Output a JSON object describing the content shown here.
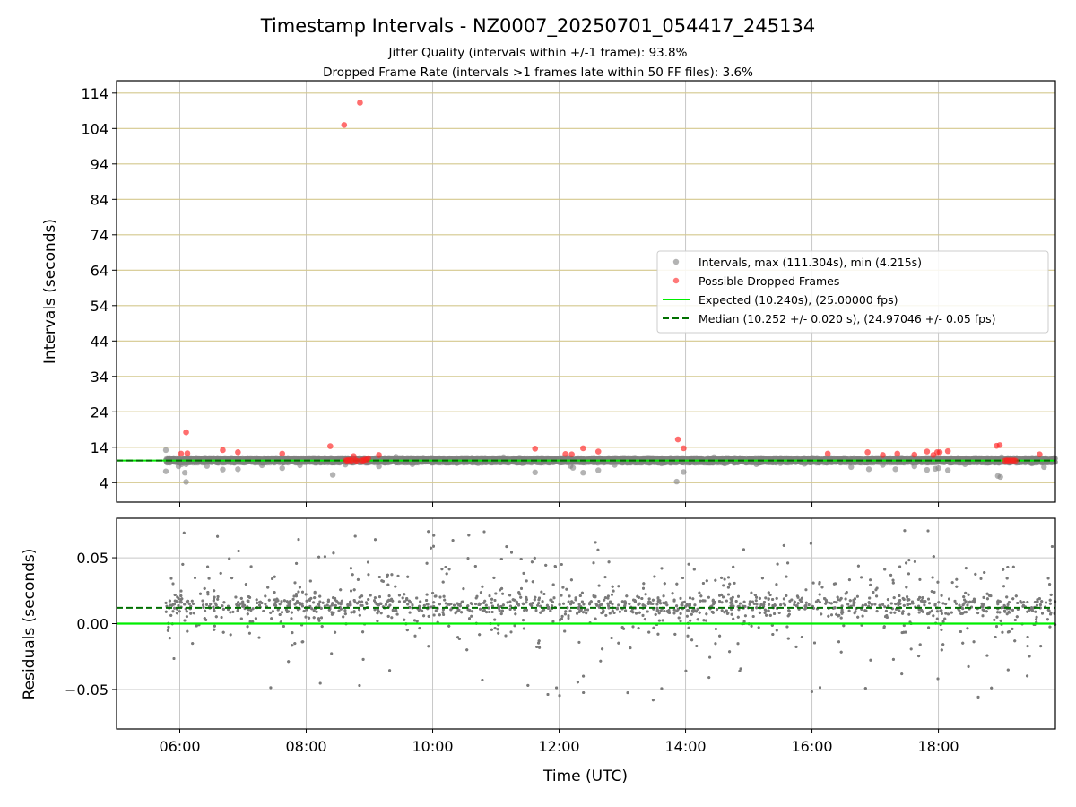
{
  "chart_data": [
    {
      "type": "scatter",
      "title": "Timestamp Intervals - NZ0007_20250701_054417_245134",
      "subtitle_lines": [
        "Jitter Quality (intervals within +/-1 frame): 93.8%",
        "Dropped Frame Rate (intervals >1 frames late within 50 FF files): 3.6%"
      ],
      "xlabel": "",
      "ylabel": "Intervals (seconds)",
      "x_units": "hours UTC",
      "xlim": [
        5.0,
        19.85
      ],
      "ylim": [
        -1.5,
        117.5
      ],
      "yticks": [
        4,
        14,
        24,
        34,
        44,
        54,
        64,
        74,
        84,
        94,
        104,
        114
      ],
      "ytick_labels": [
        "4",
        "14",
        "24",
        "34",
        "44",
        "54",
        "64",
        "74",
        "84",
        "94",
        "104",
        "114"
      ],
      "grid": {
        "horizontal_color": "#d4c88e",
        "vertical_color": "#c8c8c8"
      },
      "legend": {
        "position": "center-right",
        "entries": [
          "Intervals, max (111.304s), min (4.215s)",
          "Possible Dropped Frames",
          "Expected (10.240s), (25.00000 fps)",
          "Median (10.252 +/- 0.020 s), (24.97046 +/- 0.05 fps)"
        ]
      },
      "colors": {
        "intervals": "#808080",
        "dropped": "#ff2020",
        "expected": "#00ee00",
        "median": "#007000"
      },
      "series": [
        {
          "name": "Intervals, max (111.304s), min (4.215s)",
          "x": [
            5.78,
            5.78,
            5.98,
            6.03,
            6.08,
            6.1,
            6.1,
            6.43,
            6.68,
            6.92,
            7.3,
            7.45,
            7.62,
            7.9,
            8.05,
            8.25,
            8.42,
            8.62,
            8.95,
            9.15,
            9.42,
            9.68,
            10.08,
            10.38,
            10.72,
            11.12,
            11.42,
            11.62,
            11.84,
            12.18,
            12.22,
            12.38,
            12.62,
            12.88,
            13.22,
            13.62,
            13.86,
            13.97,
            14.45,
            14.62,
            15.12,
            15.5,
            15.88,
            16.28,
            16.62,
            16.9,
            17.12,
            17.32,
            17.62,
            17.82,
            17.95,
            18.0,
            18.15,
            18.42,
            18.68,
            18.94,
            18.98,
            19.0,
            19.48,
            19.67
          ],
          "y": [
            13.2,
            7.2,
            8.6,
            9.2,
            6.8,
            4.2,
            9.2,
            8.7,
            7.7,
            7.8,
            8.9,
            10.9,
            8.1,
            8.9,
            10.9,
            10.8,
            6.2,
            9.1,
            9.6,
            8.6,
            11.3,
            9.2,
            10.9,
            9.5,
            9.5,
            11.2,
            9.5,
            6.9,
            10.3,
            8.7,
            8.2,
            6.8,
            7.5,
            9.0,
            9.7,
            9.4,
            4.3,
            7.0,
            11.2,
            9.4,
            9.2,
            9.5,
            9.3,
            10.4,
            8.4,
            7.8,
            9.0,
            7.8,
            8.6,
            7.6,
            7.9,
            8.1,
            7.5,
            9.2,
            10.3,
            5.9,
            5.6,
            11.2,
            9.4,
            8.4
          ]
        },
        {
          "name": "Possible Dropped Frames",
          "x": [
            6.02,
            6.1,
            6.12,
            6.68,
            6.92,
            7.62,
            8.38,
            8.6,
            8.63,
            8.65,
            8.67,
            8.7,
            8.72,
            8.75,
            8.78,
            8.8,
            8.85,
            8.87,
            8.9,
            8.92,
            8.95,
            8.98,
            9.15,
            11.62,
            12.1,
            12.2,
            12.38,
            12.62,
            13.88,
            13.97,
            16.25,
            16.88,
            17.12,
            17.35,
            17.62,
            17.82,
            17.92,
            17.98,
            18.02,
            18.15,
            18.92,
            18.97,
            19.05,
            19.08,
            19.1,
            19.13,
            19.16,
            19.19,
            19.22,
            19.6
          ],
          "y": [
            12.2,
            18.2,
            12.3,
            13.2,
            12.6,
            12.2,
            14.3,
            105.0,
            10.3,
            10.2,
            10.4,
            10.3,
            10.2,
            11.5,
            10.3,
            10.2,
            111.3,
            10.3,
            10.2,
            10.5,
            10.4,
            10.9,
            11.8,
            13.6,
            12.1,
            12.0,
            13.7,
            12.8,
            16.2,
            13.7,
            12.2,
            12.6,
            11.8,
            12.2,
            11.9,
            12.8,
            11.8,
            12.6,
            12.6,
            12.9,
            14.4,
            14.6,
            10.2,
            10.3,
            10.2,
            10.3,
            10.2,
            10.3,
            10.2,
            12.0
          ]
        },
        {
          "name": "Expected (10.240s), (25.00000 fps)",
          "style": "solid",
          "y": 10.24
        },
        {
          "name": "Median (10.252 +/- 0.020 s), (24.97046 +/- 0.05 fps)",
          "style": "dashed",
          "y": 10.252
        }
      ],
      "dense_band": {
        "x_range": [
          5.78,
          19.85
        ],
        "y_range": [
          9.6,
          11.0
        ],
        "per_hour": 350
      }
    },
    {
      "type": "scatter",
      "title": "",
      "xlabel": "Time (UTC)",
      "ylabel": "Residuals (seconds)",
      "x_units": "hours UTC",
      "xlim": [
        5.0,
        19.85
      ],
      "ylim": [
        -0.08,
        0.08
      ],
      "xticks": [
        6,
        8,
        10,
        12,
        14,
        16,
        18
      ],
      "xtick_labels": [
        "06:00",
        "08:00",
        "10:00",
        "12:00",
        "14:00",
        "16:00",
        "18:00"
      ],
      "yticks": [
        -0.05,
        0.0,
        0.05
      ],
      "ytick_labels": [
        "−0.05",
        "0.00",
        "0.05"
      ],
      "grid": {
        "color": "#c8c8c8"
      },
      "colors": {
        "points": "#7a7a7a",
        "expected": "#00ee00",
        "median": "#007000"
      },
      "series": [
        {
          "name": "Residuals",
          "x_range": [
            5.78,
            19.85
          ],
          "y_range": [
            -0.06,
            0.072
          ],
          "center": 0.014,
          "per_hour": 280
        },
        {
          "name": "Expected",
          "style": "solid",
          "y": 0.0
        },
        {
          "name": "Median",
          "style": "dashed",
          "y": 0.012
        }
      ]
    }
  ]
}
